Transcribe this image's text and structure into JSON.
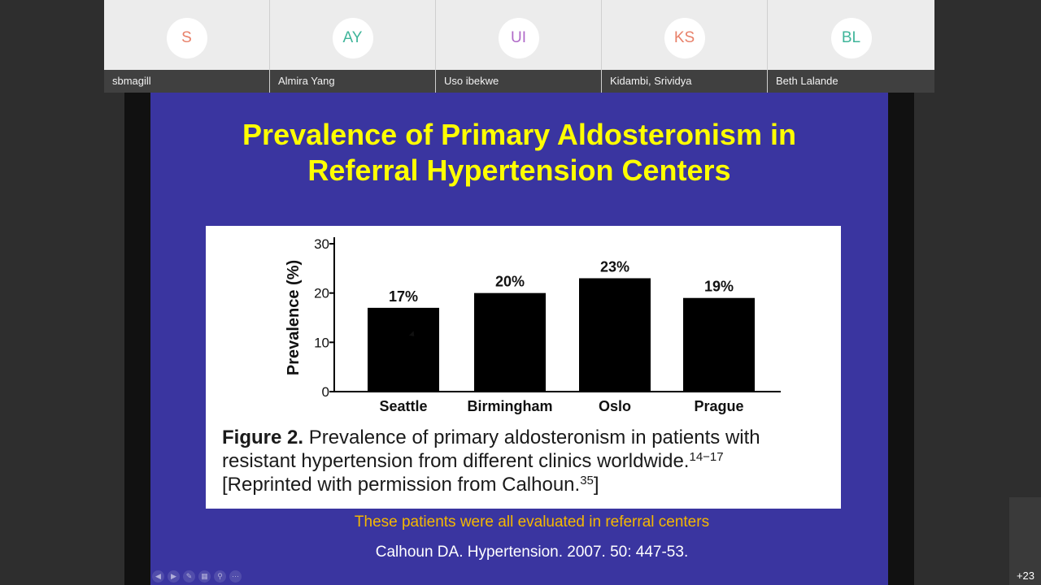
{
  "participants": [
    {
      "initials": "S",
      "name": "sbmagill",
      "color": "#e8816a"
    },
    {
      "initials": "AY",
      "name": "Almira Yang",
      "color": "#3fb59a"
    },
    {
      "initials": "UI",
      "name": "Uso ibekwe",
      "color": "#b06ac8"
    },
    {
      "initials": "KS",
      "name": "Kidambi, Srividya",
      "color": "#e8816a"
    },
    {
      "initials": "BL",
      "name": "Beth Lalande",
      "color": "#3fb59a"
    }
  ],
  "slide": {
    "title_line1": "Prevalence of Primary Aldosteronism in",
    "title_line2": "Referral Hypertension Centers",
    "caption_label": "Figure 2.",
    "caption_text1": " Prevalence of primary aldosteronism in patients with resistant hypertension from different clinics worldwide.",
    "caption_refs": "14−17",
    "caption_text2": "[Reprinted with permission from Calhoun.",
    "caption_ref2": "35",
    "caption_end": "]",
    "note": "These patients were all evaluated in referral centers",
    "citation": "Calhoun DA.  Hypertension. 2007. 50: 447-53."
  },
  "chart_data": {
    "type": "bar",
    "categories": [
      "Seattle",
      "Birmingham",
      "Oslo",
      "Prague"
    ],
    "values": [
      17,
      20,
      23,
      19
    ],
    "data_labels": [
      "17%",
      "20%",
      "23%",
      "19%"
    ],
    "ylabel": "Prevalence (%)",
    "yticks": [
      "0",
      "10",
      "20",
      "30"
    ],
    "ylim": [
      0,
      30
    ],
    "bar_color": "#000000",
    "grid": false
  },
  "controls": [
    "prev-icon",
    "next-icon",
    "pen-icon",
    "slides-icon",
    "zoom-icon",
    "more-icon"
  ],
  "more_participants": "+23",
  "colors": {
    "slide_bg": "#3a35a0",
    "title": "#ffff00",
    "note": "#f5b800"
  }
}
